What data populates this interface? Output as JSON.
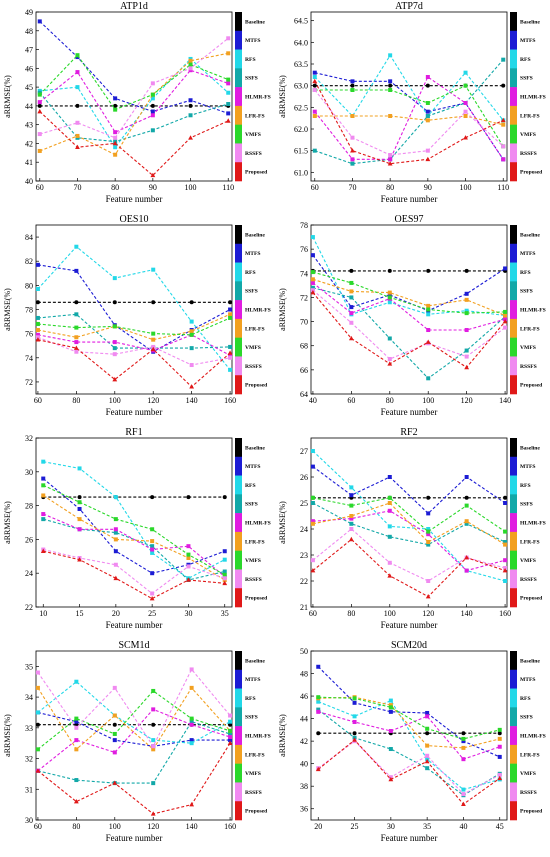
{
  "legend_labels": [
    "Baseline",
    "MTFS",
    "RFS",
    "SSFS",
    "HLMR-FS",
    "LFR-FS",
    "VMFS",
    "RSSFS",
    "Proposed"
  ],
  "colors": {
    "Baseline": "#000000",
    "MTFS": "#1c1cd4",
    "RFS": "#22d8e8",
    "SSFS": "#12a8a8",
    "HLMR-FS": "#e01ce0",
    "LFR-FS": "#f2a020",
    "VMFS": "#2ad82a",
    "RSSFS": "#f08af0",
    "Proposed": "#e01818"
  },
  "chart_data": [
    {
      "type": "line",
      "title": "ATP1d",
      "xlabel": "Feature number",
      "ylabel": "aRRMSE(%)",
      "x": [
        60,
        70,
        80,
        90,
        100,
        110
      ],
      "xlim": [
        59,
        111
      ],
      "xticks": [
        60,
        70,
        80,
        90,
        100,
        110
      ],
      "ylim": [
        40,
        49
      ],
      "yticks": [
        40,
        41,
        42,
        43,
        44,
        45,
        46,
        47,
        48,
        49
      ],
      "series": [
        {
          "name": "Baseline",
          "values": [
            44.0,
            44.0,
            44.0,
            44.0,
            44.0,
            44.0
          ]
        },
        {
          "name": "MTFS",
          "values": [
            48.5,
            46.6,
            44.4,
            43.7,
            44.3,
            43.6
          ]
        },
        {
          "name": "RFS",
          "values": [
            44.8,
            45.0,
            41.8,
            44.4,
            46.5,
            44.7
          ]
        },
        {
          "name": "SSFS",
          "values": [
            44.7,
            42.3,
            42.1,
            42.7,
            43.5,
            44.1
          ]
        },
        {
          "name": "HLMR-FS",
          "values": [
            44.2,
            45.8,
            42.6,
            43.5,
            45.9,
            45.2
          ]
        },
        {
          "name": "LFR-FS",
          "values": [
            41.6,
            42.4,
            41.4,
            44.6,
            46.4,
            46.8
          ]
        },
        {
          "name": "VMFS",
          "values": [
            44.6,
            46.7,
            43.8,
            44.6,
            46.2,
            45.4
          ]
        },
        {
          "name": "RSSFS",
          "values": [
            42.5,
            43.1,
            42.3,
            45.2,
            46.0,
            47.6
          ]
        },
        {
          "name": "Proposed",
          "values": [
            43.7,
            41.8,
            42.0,
            40.3,
            42.3,
            43.2
          ]
        }
      ]
    },
    {
      "type": "line",
      "title": "ATP7d",
      "xlabel": "Feature number",
      "ylabel": "aRRMSE(%)",
      "x": [
        60,
        70,
        80,
        90,
        100,
        110
      ],
      "xlim": [
        59,
        111
      ],
      "xticks": [
        60,
        70,
        80,
        90,
        100,
        110
      ],
      "ylim": [
        60.8,
        64.7
      ],
      "yticks": [
        61.0,
        61.5,
        62.0,
        62.5,
        63.0,
        63.5,
        64.0,
        64.5
      ],
      "series": [
        {
          "name": "Baseline",
          "values": [
            63.0,
            63.0,
            63.0,
            63.0,
            63.0,
            63.0
          ]
        },
        {
          "name": "MTFS",
          "values": [
            63.3,
            63.1,
            63.1,
            62.4,
            62.6,
            61.3
          ]
        },
        {
          "name": "RFS",
          "values": [
            63.2,
            62.3,
            63.7,
            62.3,
            63.3,
            62.2
          ]
        },
        {
          "name": "SSFS",
          "values": [
            61.5,
            61.2,
            61.3,
            62.3,
            62.6,
            63.6
          ]
        },
        {
          "name": "HLMR-FS",
          "values": [
            62.4,
            61.3,
            61.3,
            63.2,
            62.6,
            61.3
          ]
        },
        {
          "name": "LFR-FS",
          "values": [
            62.3,
            62.3,
            62.3,
            62.2,
            62.3,
            62.1
          ]
        },
        {
          "name": "VMFS",
          "values": [
            62.9,
            62.9,
            62.9,
            62.6,
            63.0,
            61.6
          ]
        },
        {
          "name": "RSSFS",
          "values": [
            62.9,
            61.8,
            61.4,
            61.5,
            62.4,
            61.6
          ]
        },
        {
          "name": "Proposed",
          "values": [
            63.1,
            61.5,
            61.2,
            61.3,
            61.8,
            62.2
          ]
        }
      ]
    },
    {
      "type": "line",
      "title": "OES10",
      "xlabel": "Feature number",
      "ylabel": "aRRMSE(%)",
      "x": [
        60,
        80,
        100,
        120,
        140,
        160
      ],
      "xlim": [
        59,
        161
      ],
      "xticks": [
        60,
        80,
        100,
        120,
        140,
        160
      ],
      "ylim": [
        71,
        85
      ],
      "yticks": [
        72,
        74,
        76,
        78,
        80,
        82,
        84
      ],
      "series": [
        {
          "name": "Baseline",
          "values": [
            78.6,
            78.6,
            78.6,
            78.6,
            78.6,
            78.6
          ]
        },
        {
          "name": "MTFS",
          "values": [
            81.7,
            81.2,
            76.7,
            74.5,
            76.3,
            78.0
          ]
        },
        {
          "name": "RFS",
          "values": [
            79.7,
            83.2,
            80.6,
            81.3,
            77.0,
            73.0
          ]
        },
        {
          "name": "SSFS",
          "values": [
            77.3,
            77.6,
            74.8,
            74.8,
            74.8,
            74.9
          ]
        },
        {
          "name": "HLMR-FS",
          "values": [
            75.9,
            75.3,
            75.3,
            74.6,
            75.9,
            74.2
          ]
        },
        {
          "name": "LFR-FS",
          "values": [
            76.3,
            75.7,
            76.6,
            75.5,
            76.2,
            77.6
          ]
        },
        {
          "name": "VMFS",
          "values": [
            76.8,
            76.5,
            76.6,
            76.0,
            75.9,
            77.3
          ]
        },
        {
          "name": "RSSFS",
          "values": [
            75.7,
            74.5,
            74.3,
            74.9,
            73.4,
            74.0
          ]
        },
        {
          "name": "Proposed",
          "values": [
            75.5,
            74.8,
            72.2,
            74.7,
            71.6,
            74.4
          ]
        }
      ]
    },
    {
      "type": "line",
      "title": "OES97",
      "xlabel": "Feature number",
      "ylabel": "aRRMSE(%)",
      "x": [
        40,
        60,
        80,
        100,
        120,
        140
      ],
      "xlim": [
        39,
        141
      ],
      "xticks": [
        40,
        60,
        80,
        100,
        120,
        140
      ],
      "ylim": [
        64,
        78
      ],
      "yticks": [
        64,
        66,
        68,
        70,
        72,
        74,
        76,
        78
      ],
      "series": [
        {
          "name": "Baseline",
          "values": [
            74.2,
            74.2,
            74.2,
            74.2,
            74.2,
            74.2
          ]
        },
        {
          "name": "MTFS",
          "values": [
            75.5,
            71.2,
            72.2,
            70.9,
            72.3,
            74.4
          ]
        },
        {
          "name": "RFS",
          "values": [
            77.0,
            70.6,
            71.6,
            70.6,
            70.9,
            70.5
          ]
        },
        {
          "name": "SSFS",
          "values": [
            72.8,
            72.0,
            68.6,
            65.3,
            67.6,
            70.4
          ]
        },
        {
          "name": "HLMR-FS",
          "values": [
            73.2,
            70.7,
            71.9,
            69.3,
            69.3,
            70.2
          ]
        },
        {
          "name": "LFR-FS",
          "values": [
            73.5,
            72.5,
            72.4,
            71.3,
            71.8,
            70.5
          ]
        },
        {
          "name": "VMFS",
          "values": [
            74.1,
            73.2,
            72.0,
            71.0,
            70.7,
            70.8
          ]
        },
        {
          "name": "RSSFS",
          "values": [
            72.6,
            69.9,
            66.9,
            68.2,
            67.1,
            69.5
          ]
        },
        {
          "name": "Proposed",
          "values": [
            72.4,
            68.6,
            66.5,
            68.3,
            66.2,
            70.0
          ]
        }
      ]
    },
    {
      "type": "line",
      "title": "RF1",
      "xlabel": "Feature number",
      "ylabel": "aRRMSE(%)",
      "x": [
        10,
        15,
        20,
        25,
        30,
        35
      ],
      "xlim": [
        9,
        36
      ],
      "xticks": [
        10,
        15,
        20,
        25,
        30,
        35
      ],
      "ylim": [
        22,
        32
      ],
      "yticks": [
        22,
        24,
        26,
        28,
        30,
        32
      ],
      "series": [
        {
          "name": "Baseline",
          "values": [
            28.5,
            28.5,
            28.5,
            28.5,
            28.5,
            28.5
          ]
        },
        {
          "name": "MTFS",
          "values": [
            29.6,
            27.8,
            25.3,
            24.0,
            24.5,
            25.3
          ]
        },
        {
          "name": "RFS",
          "values": [
            30.6,
            30.2,
            28.5,
            25.2,
            23.7,
            24.8
          ]
        },
        {
          "name": "SSFS",
          "values": [
            27.2,
            26.6,
            26.4,
            25.6,
            23.6,
            24.1
          ]
        },
        {
          "name": "HLMR-FS",
          "values": [
            27.5,
            26.6,
            26.6,
            25.4,
            25.6,
            23.8
          ]
        },
        {
          "name": "LFR-FS",
          "values": [
            28.6,
            27.2,
            26.0,
            25.9,
            24.9,
            23.6
          ]
        },
        {
          "name": "VMFS",
          "values": [
            29.2,
            28.2,
            27.2,
            26.6,
            25.1,
            23.9
          ]
        },
        {
          "name": "RSSFS",
          "values": [
            25.4,
            24.9,
            24.5,
            22.8,
            24.4,
            23.7
          ]
        },
        {
          "name": "Proposed",
          "values": [
            25.3,
            24.8,
            23.7,
            22.5,
            23.6,
            23.4
          ]
        }
      ]
    },
    {
      "type": "line",
      "title": "RF2",
      "xlabel": "Feature number",
      "ylabel": "aRRMSE(%)",
      "x": [
        60,
        80,
        100,
        120,
        140,
        160
      ],
      "xlim": [
        59,
        161
      ],
      "xticks": [
        60,
        80,
        100,
        120,
        140,
        160
      ],
      "ylim": [
        21,
        27.5
      ],
      "yticks": [
        21,
        22,
        23,
        24,
        25,
        26,
        27
      ],
      "series": [
        {
          "name": "Baseline",
          "values": [
            25.2,
            25.2,
            25.2,
            25.2,
            25.2,
            25.2
          ]
        },
        {
          "name": "MTFS",
          "values": [
            26.4,
            25.3,
            26.0,
            24.6,
            26.0,
            25.0
          ]
        },
        {
          "name": "RFS",
          "values": [
            27.0,
            25.6,
            24.1,
            24.0,
            22.4,
            22.0
          ]
        },
        {
          "name": "SSFS",
          "values": [
            25.0,
            24.2,
            23.7,
            23.4,
            24.2,
            23.5
          ]
        },
        {
          "name": "HLMR-FS",
          "values": [
            24.3,
            24.4,
            24.7,
            23.8,
            22.4,
            22.8
          ]
        },
        {
          "name": "LFR-FS",
          "values": [
            24.2,
            24.5,
            25.0,
            23.5,
            24.3,
            23.4
          ]
        },
        {
          "name": "VMFS",
          "values": [
            25.2,
            24.9,
            25.2,
            23.9,
            24.9,
            23.9
          ]
        },
        {
          "name": "RSSFS",
          "values": [
            22.8,
            24.0,
            22.7,
            22.0,
            22.9,
            22.5
          ]
        },
        {
          "name": "Proposed",
          "values": [
            22.4,
            23.6,
            22.2,
            21.4,
            22.9,
            22.4
          ]
        }
      ]
    },
    {
      "type": "line",
      "title": "SCM1d",
      "xlabel": "Feature number",
      "ylabel": "aRRMSE(%)",
      "x": [
        60,
        80,
        100,
        120,
        140,
        160
      ],
      "xlim": [
        59,
        161
      ],
      "xticks": [
        60,
        80,
        100,
        120,
        140,
        160
      ],
      "ylim": [
        30,
        35.5
      ],
      "yticks": [
        30,
        31,
        32,
        33,
        34,
        35
      ],
      "series": [
        {
          "name": "Baseline",
          "values": [
            33.1,
            33.1,
            33.1,
            33.1,
            33.1,
            33.1
          ]
        },
        {
          "name": "MTFS",
          "values": [
            33.5,
            33.2,
            32.6,
            32.4,
            32.6,
            32.6
          ]
        },
        {
          "name": "RFS",
          "values": [
            33.5,
            34.5,
            33.4,
            32.6,
            32.5,
            33.2
          ]
        },
        {
          "name": "SSFS",
          "values": [
            31.6,
            31.3,
            31.2,
            31.2,
            33.2,
            32.8
          ]
        },
        {
          "name": "HLMR-FS",
          "values": [
            31.6,
            32.6,
            32.2,
            33.6,
            33.1,
            32.7
          ]
        },
        {
          "name": "LFR-FS",
          "values": [
            34.3,
            32.3,
            33.4,
            32.3,
            34.3,
            32.9
          ]
        },
        {
          "name": "VMFS",
          "values": [
            32.3,
            33.3,
            32.8,
            34.2,
            33.3,
            32.9
          ]
        },
        {
          "name": "RSSFS",
          "values": [
            34.8,
            33.0,
            34.3,
            32.4,
            34.9,
            33.4
          ]
        },
        {
          "name": "Proposed",
          "values": [
            31.6,
            30.6,
            31.2,
            30.2,
            30.5,
            32.5
          ]
        }
      ]
    },
    {
      "type": "line",
      "title": "SCM20d",
      "xlabel": "Feature number",
      "ylabel": "aRRMSE(%)",
      "x": [
        20,
        25,
        30,
        35,
        40,
        45
      ],
      "xlim": [
        19,
        46
      ],
      "xticks": [
        20,
        25,
        30,
        35,
        40,
        45
      ],
      "ylim": [
        35,
        50
      ],
      "yticks": [
        36,
        38,
        40,
        42,
        44,
        46,
        48,
        50
      ],
      "series": [
        {
          "name": "Baseline",
          "values": [
            42.7,
            42.7,
            42.7,
            42.7,
            42.7,
            42.7
          ]
        },
        {
          "name": "MTFS",
          "values": [
            48.6,
            45.4,
            44.6,
            44.5,
            42.0,
            40.6
          ]
        },
        {
          "name": "RFS",
          "values": [
            45.5,
            44.2,
            45.6,
            40.4,
            37.7,
            38.6
          ]
        },
        {
          "name": "SSFS",
          "values": [
            44.8,
            42.3,
            41.3,
            39.6,
            37.2,
            39.1
          ]
        },
        {
          "name": "HLMR-FS",
          "values": [
            44.6,
            43.7,
            42.9,
            44.2,
            40.4,
            41.5
          ]
        },
        {
          "name": "LFR-FS",
          "values": [
            45.8,
            45.9,
            45.2,
            41.6,
            41.4,
            42.2
          ]
        },
        {
          "name": "VMFS",
          "values": [
            45.9,
            45.8,
            45.0,
            43.1,
            42.2,
            43.0
          ]
        },
        {
          "name": "RSSFS",
          "values": [
            39.6,
            42.0,
            38.8,
            40.7,
            37.3,
            39.0
          ]
        },
        {
          "name": "Proposed",
          "values": [
            39.5,
            42.1,
            38.6,
            40.2,
            36.4,
            38.7
          ]
        }
      ]
    }
  ]
}
